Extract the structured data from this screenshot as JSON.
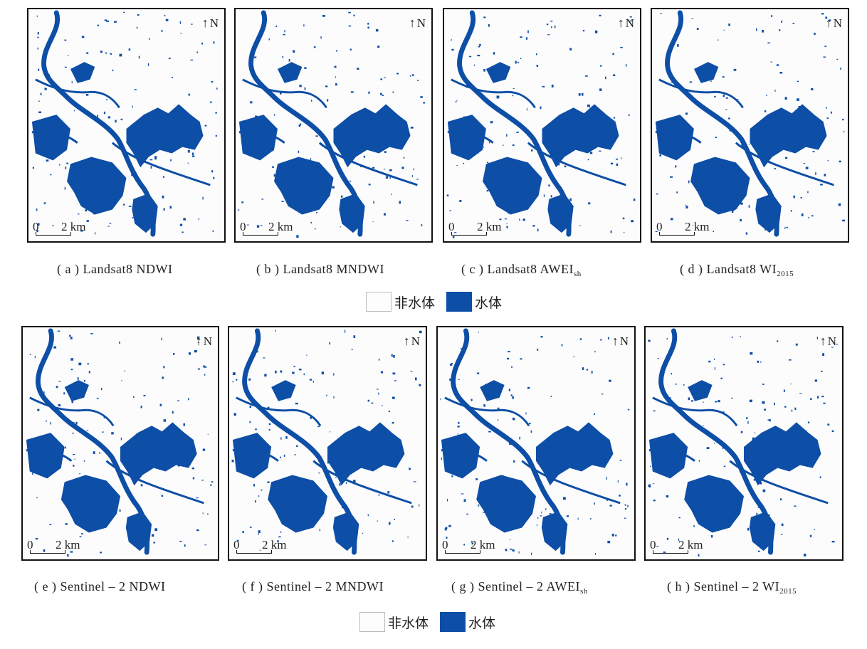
{
  "colors": {
    "water": "#0d4ea6",
    "land": "#fcfcfc",
    "frame": "#111111"
  },
  "north_label": "N",
  "scale": {
    "zero": "0",
    "distance": "2 km"
  },
  "panels": [
    {
      "id": "a",
      "prefix": "( a )",
      "title": "Landsat8 NDWI",
      "sub": ""
    },
    {
      "id": "b",
      "prefix": "( b )",
      "title": "Landsat8 MNDWI",
      "sub": ""
    },
    {
      "id": "c",
      "prefix": "( c )",
      "title": "Landsat8 AWEI",
      "sub": "sh"
    },
    {
      "id": "d",
      "prefix": "( d )",
      "title": "Landsat8 WI",
      "sub": "2015"
    },
    {
      "id": "e",
      "prefix": "( e )",
      "title": "Sentinel – 2 NDWI",
      "sub": ""
    },
    {
      "id": "f",
      "prefix": "( f )",
      "title": "Sentinel – 2 MNDWI",
      "sub": ""
    },
    {
      "id": "g",
      "prefix": "( g )",
      "title": "Sentinel – 2 AWEI",
      "sub": "sh"
    },
    {
      "id": "h",
      "prefix": "( h )",
      "title": "Sentinel – 2 WI",
      "sub": "2015"
    }
  ],
  "legend": {
    "non_water": "非水体",
    "water": "水体"
  }
}
